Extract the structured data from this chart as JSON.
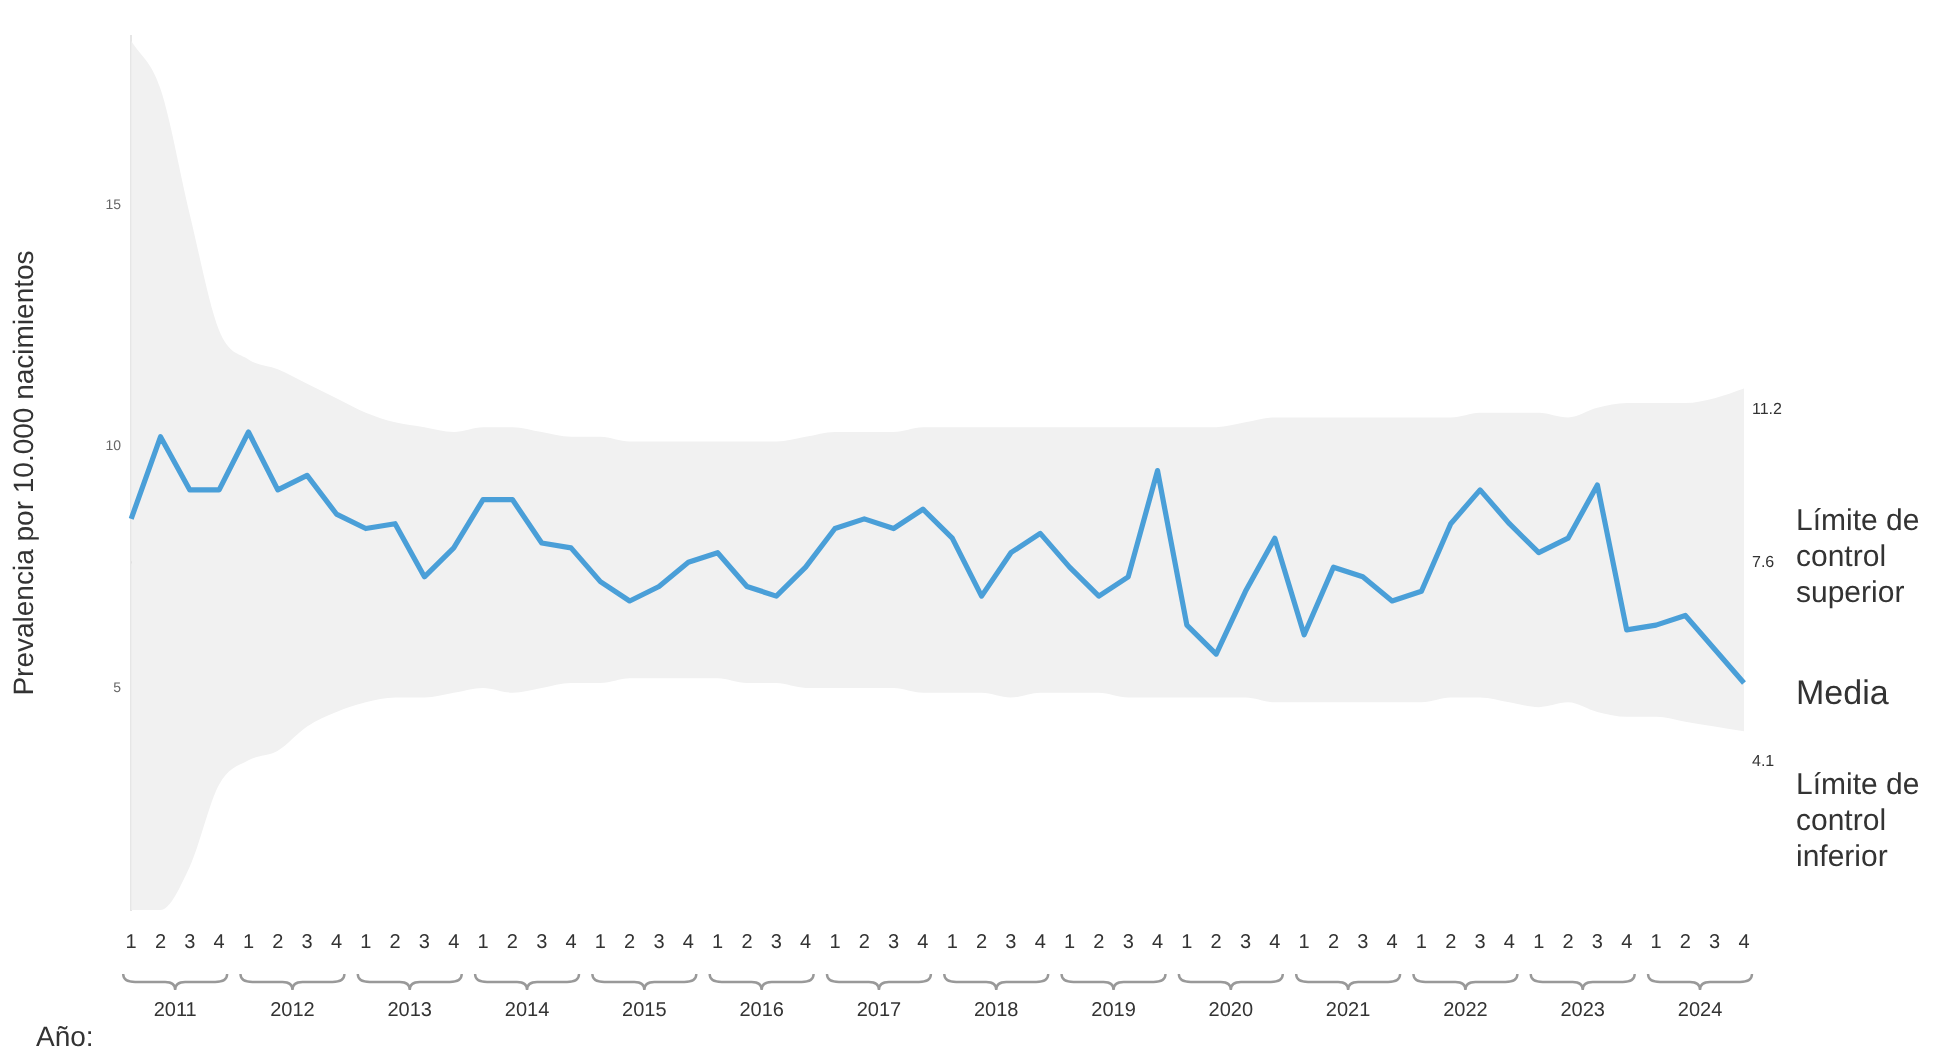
{
  "chart_data": {
    "type": "line",
    "ylabel": "Prevalencia por 10.000 nacimientos",
    "xlabel": "Año:",
    "categories": [
      "1",
      "2",
      "3",
      "4",
      "1",
      "2",
      "3",
      "4",
      "1",
      "2",
      "3",
      "4",
      "1",
      "2",
      "3",
      "4",
      "1",
      "2",
      "3",
      "4",
      "1",
      "2",
      "3",
      "4",
      "1",
      "2",
      "3",
      "4",
      "1",
      "2",
      "3",
      "4",
      "1",
      "2",
      "3",
      "4",
      "1",
      "2",
      "3",
      "4",
      "1",
      "2",
      "3",
      "4",
      "1",
      "2",
      "3",
      "4",
      "1",
      "2",
      "3",
      "4",
      "1",
      "2",
      "3",
      "4"
    ],
    "ylim": [
      0.4,
      18.5
    ],
    "yticks": [
      5,
      10,
      15
    ],
    "marker": "none",
    "series": [
      {
        "color": "#4a9fd8",
        "values": [
          8.5,
          10.2,
          9.1,
          9.1,
          10.3,
          9.1,
          9.4,
          8.6,
          8.3,
          8.4,
          7.3,
          7.9,
          8.9,
          8.9,
          8.0,
          7.9,
          7.2,
          6.8,
          7.1,
          7.6,
          7.8,
          7.1,
          6.9,
          7.5,
          8.3,
          8.5,
          8.3,
          8.7,
          8.1,
          6.9,
          7.8,
          8.2,
          7.5,
          6.9,
          7.3,
          9.5,
          6.3,
          5.7,
          7.0,
          8.1,
          6.1,
          7.5,
          7.3,
          6.8,
          7.0,
          8.4,
          9.1,
          8.4,
          7.8,
          8.1,
          9.2,
          6.2,
          6.3,
          6.5,
          5.8,
          5.1
        ],
        "upper": [
          18.4,
          17.4,
          14.8,
          12.4,
          11.8,
          11.6,
          11.3,
          11.0,
          10.7,
          10.5,
          10.4,
          10.3,
          10.4,
          10.4,
          10.3,
          10.2,
          10.2,
          10.1,
          10.1,
          10.1,
          10.1,
          10.1,
          10.1,
          10.2,
          10.3,
          10.3,
          10.3,
          10.4,
          10.4,
          10.4,
          10.4,
          10.4,
          10.4,
          10.4,
          10.4,
          10.4,
          10.4,
          10.4,
          10.5,
          10.6,
          10.6,
          10.6,
          10.6,
          10.6,
          10.6,
          10.6,
          10.7,
          10.7,
          10.7,
          10.6,
          10.8,
          10.9,
          10.9,
          10.9,
          11.0,
          11.2
        ],
        "lower": [
          0.4,
          0.4,
          1.3,
          3.0,
          3.5,
          3.7,
          4.2,
          4.5,
          4.7,
          4.8,
          4.8,
          4.9,
          5.0,
          4.9,
          5.0,
          5.1,
          5.1,
          5.2,
          5.2,
          5.2,
          5.2,
          5.1,
          5.1,
          5.0,
          5.0,
          5.0,
          5.0,
          4.9,
          4.9,
          4.9,
          4.8,
          4.9,
          4.9,
          4.9,
          4.8,
          4.8,
          4.8,
          4.8,
          4.8,
          4.7,
          4.7,
          4.7,
          4.7,
          4.7,
          4.7,
          4.8,
          4.8,
          4.7,
          4.6,
          4.7,
          4.5,
          4.4,
          4.4,
          4.3,
          4.2,
          4.1
        ]
      }
    ],
    "ref_lines": [
      {
        "axis": "y",
        "value": 7.6,
        "label": "7.6",
        "color": "#b5b5b5"
      }
    ],
    "annotations": [
      "11.2",
      "Límite de control superior",
      "Media",
      "4.1",
      "Límite de control inferior",
      "2011",
      "2012",
      "2013",
      "2014",
      "2015",
      "2016",
      "2017",
      "2018",
      "2019",
      "2020",
      "2021",
      "2022",
      "2023",
      "2024"
    ]
  }
}
